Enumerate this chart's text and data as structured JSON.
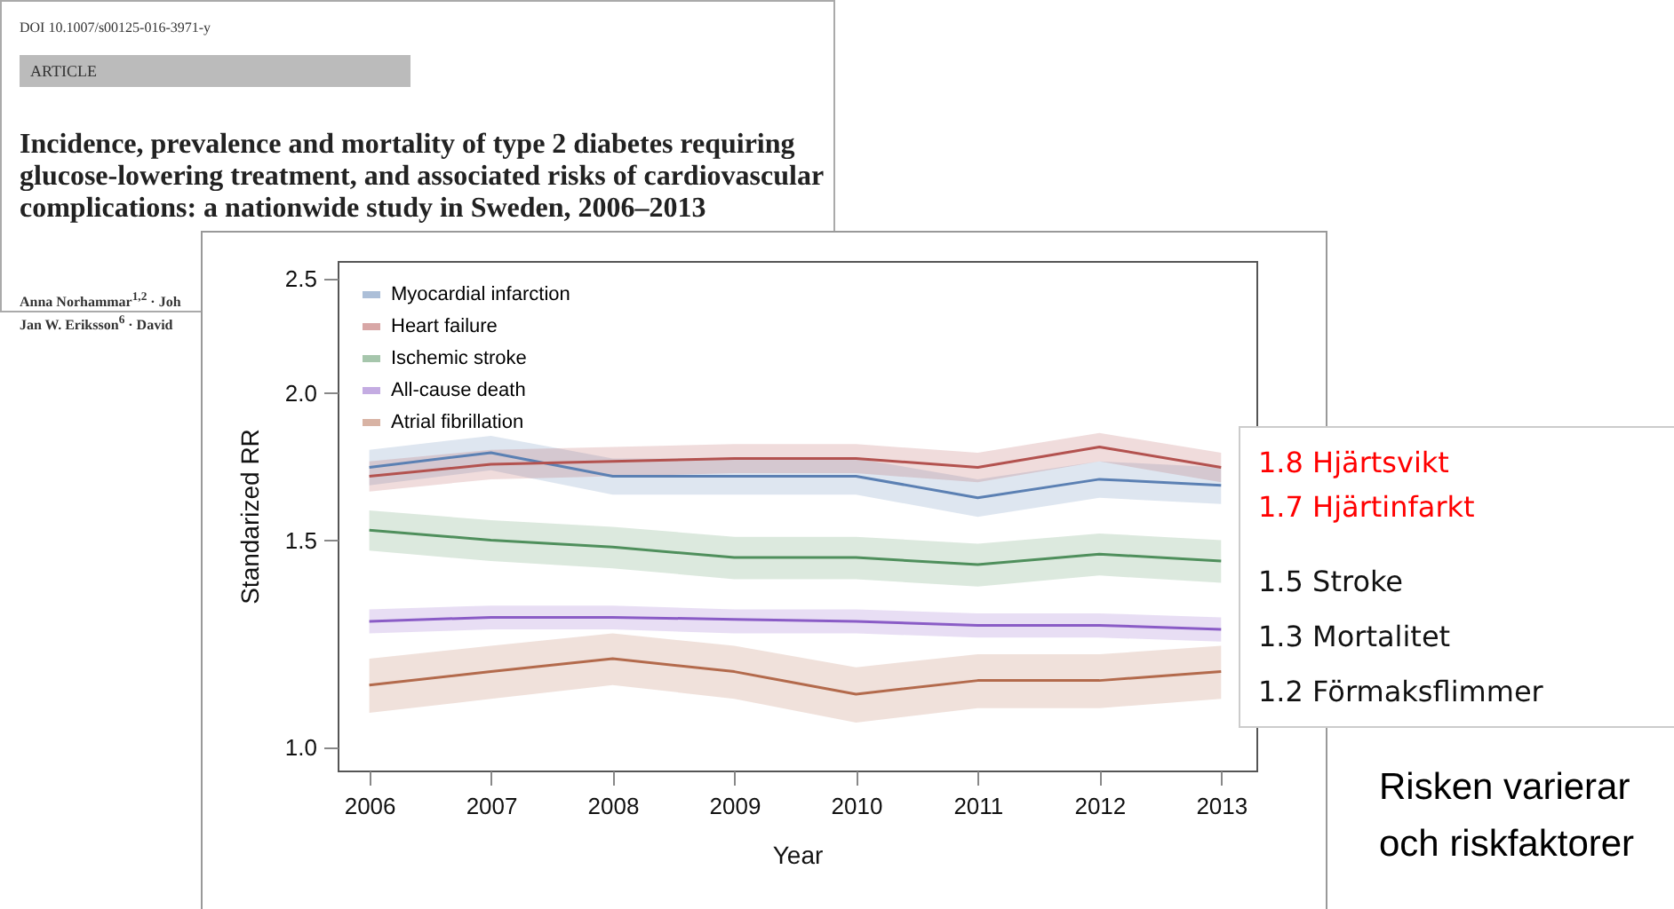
{
  "chart_data": {
    "type": "line",
    "title": "Incidence, prevalence and mortality of type 2 diabetes requiring glucose-lowering treatment, and associated risks of cardiovascular complications: a nationwide study in Sweden, 2006–2013",
    "xlabel": "Year",
    "ylabel": "Standarized RR",
    "x": [
      2006,
      2007,
      2008,
      2009,
      2010,
      2011,
      2012,
      2013
    ],
    "series": [
      {
        "name": "Myocardial infarction",
        "color": "#5b80b3",
        "values": [
          1.73,
          1.78,
          1.7,
          1.7,
          1.7,
          1.63,
          1.69,
          1.67
        ],
        "lower": [
          1.67,
          1.72,
          1.64,
          1.64,
          1.64,
          1.57,
          1.63,
          1.61
        ],
        "upper": [
          1.79,
          1.84,
          1.76,
          1.76,
          1.76,
          1.69,
          1.75,
          1.73
        ]
      },
      {
        "name": "Heart failure",
        "color": "#b3524f",
        "values": [
          1.7,
          1.74,
          1.75,
          1.76,
          1.76,
          1.73,
          1.8,
          1.73
        ],
        "lower": [
          1.65,
          1.69,
          1.7,
          1.71,
          1.71,
          1.68,
          1.75,
          1.68
        ],
        "upper": [
          1.75,
          1.79,
          1.8,
          1.81,
          1.81,
          1.78,
          1.85,
          1.78
        ]
      },
      {
        "name": "Ischemic stroke",
        "color": "#4f8f5c",
        "values": [
          1.53,
          1.5,
          1.48,
          1.45,
          1.45,
          1.43,
          1.46,
          1.44
        ],
        "lower": [
          1.47,
          1.44,
          1.42,
          1.39,
          1.39,
          1.37,
          1.4,
          1.38
        ],
        "upper": [
          1.59,
          1.56,
          1.54,
          1.51,
          1.51,
          1.49,
          1.52,
          1.5
        ]
      },
      {
        "name": "All-cause death",
        "color": "#8a5cc6",
        "values": [
          1.28,
          1.29,
          1.29,
          1.285,
          1.28,
          1.27,
          1.27,
          1.26
        ],
        "lower": [
          1.25,
          1.26,
          1.26,
          1.25,
          1.25,
          1.24,
          1.24,
          1.23
        ],
        "upper": [
          1.31,
          1.32,
          1.32,
          1.31,
          1.31,
          1.3,
          1.3,
          1.29
        ]
      },
      {
        "name": "Atrial fibrillation",
        "color": "#b36a4c",
        "values": [
          1.13,
          1.16,
          1.19,
          1.16,
          1.11,
          1.14,
          1.14,
          1.16
        ],
        "lower": [
          1.07,
          1.1,
          1.13,
          1.1,
          1.05,
          1.08,
          1.08,
          1.1
        ],
        "upper": [
          1.19,
          1.22,
          1.25,
          1.22,
          1.17,
          1.2,
          1.2,
          1.22
        ]
      }
    ],
    "xlim": [
      2005.74,
      2013.29
    ],
    "xticks": [
      2006,
      2007,
      2008,
      2009,
      2010,
      2011,
      2012,
      2013
    ],
    "ylim": [
      0.956,
      2.59
    ],
    "yticks": [
      {
        "value": 1,
        "label": "1.0"
      },
      1.5,
      {
        "value": 2,
        "label": "2.0"
      },
      2.5
    ],
    "log": "y",
    "legend": "top left",
    "grid": false,
    "line_style": "solid",
    "marker": "none",
    "annotations": [
      "DOI 10.1007/s00125-016-3971-y",
      "ARTICLE",
      "Anna Norhammar$^{1,2}$ · Joh",
      "Jan W. Eriksson$^{6}$ · David",
      "1.8 Hjärtsvikt",
      "1.7 Hjärtinfarkt",
      "1.5 Stroke",
      "1.3 Mortalitet",
      "1.2 Förmaksflimmer",
      "Risken varierar",
      "och riskfaktorer"
    ]
  }
}
